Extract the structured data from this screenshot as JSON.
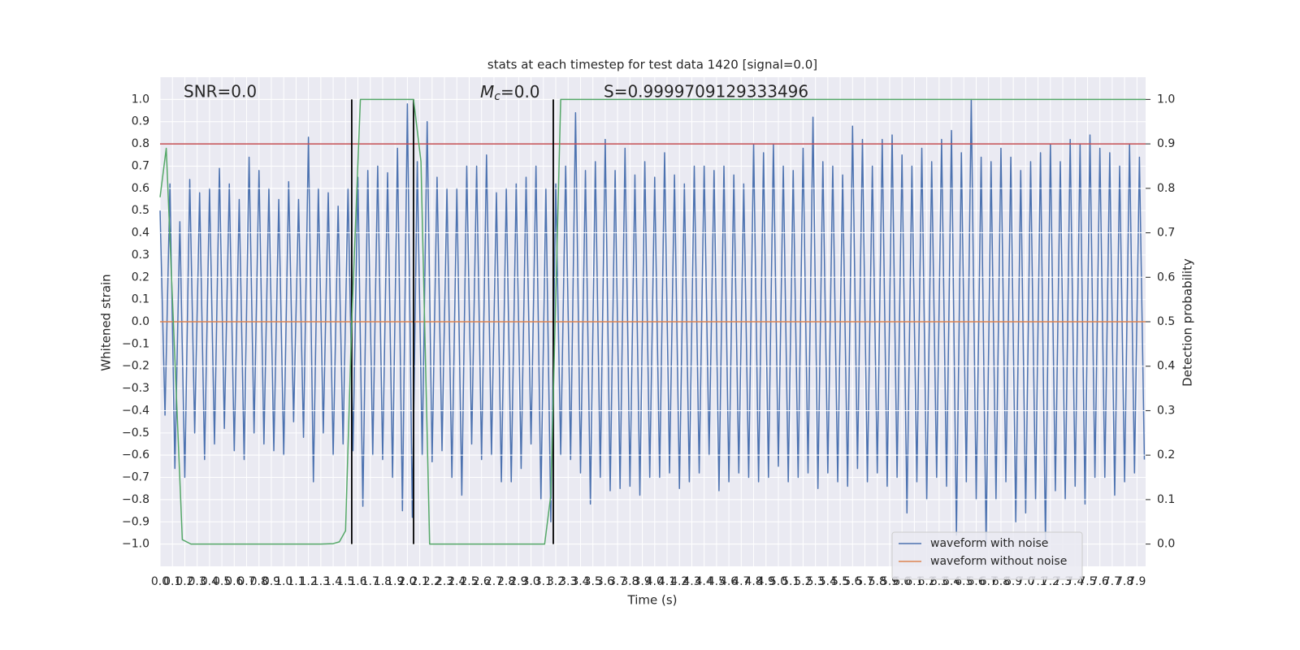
{
  "chart_data": {
    "type": "line",
    "title": "stats at each timestep for test data 1420 [signal=0.0]",
    "xlabel": "Time (s)",
    "ylabel": "Whitened strain",
    "y2label": "Detection probability",
    "grid": true,
    "legend": "lower right",
    "xlim": [
      0,
      7.97
    ],
    "ylim": [
      -1.1,
      1.1
    ],
    "y2lim": [
      -0.05,
      1.05
    ],
    "xticks": [
      {
        "value": 0,
        "label": "0.0"
      },
      0.1,
      0.2,
      0.3,
      0.4,
      0.5,
      0.6,
      0.7,
      0.8,
      0.9,
      {
        "value": 1,
        "label": "1.0"
      },
      1.1,
      1.2,
      1.3,
      1.4,
      1.5,
      1.6,
      1.7,
      1.8,
      1.9,
      {
        "value": 2,
        "label": "2.0"
      },
      2.1,
      2.2,
      2.3,
      2.4,
      2.5,
      2.6,
      2.7,
      2.8,
      2.9,
      {
        "value": 3,
        "label": "3.0"
      },
      3.1,
      3.2,
      3.3,
      3.4,
      3.5,
      3.6,
      3.7,
      3.8,
      3.9,
      {
        "value": 4,
        "label": "4.0"
      },
      4.1,
      4.2,
      4.3,
      4.4,
      4.5,
      4.6,
      4.7,
      4.8,
      4.9,
      {
        "value": 5,
        "label": "5.0"
      },
      5.1,
      5.2,
      5.3,
      5.4,
      5.5,
      5.6,
      5.7,
      5.8,
      5.9,
      {
        "value": 6,
        "label": "6.0"
      },
      6.1,
      6.2,
      6.3,
      6.4,
      6.5,
      6.6,
      6.7,
      6.8,
      6.9,
      {
        "value": 7,
        "label": "7.0"
      },
      7.1,
      7.2,
      7.3,
      7.4,
      7.5,
      7.6,
      7.7,
      7.8,
      7.9
    ],
    "yticks": [
      {
        "value": -1,
        "label": "−1.0"
      },
      {
        "value": -0.9,
        "label": "−0.9"
      },
      {
        "value": -0.8,
        "label": "−0.8"
      },
      {
        "value": -0.7,
        "label": "−0.7"
      },
      {
        "value": -0.6,
        "label": "−0.6"
      },
      {
        "value": -0.5,
        "label": "−0.5"
      },
      {
        "value": -0.4,
        "label": "−0.4"
      },
      {
        "value": -0.3,
        "label": "−0.3"
      },
      {
        "value": -0.2,
        "label": "−0.2"
      },
      {
        "value": -0.1,
        "label": "−0.1"
      },
      {
        "value": 0,
        "label": "0.0"
      },
      0.1,
      0.2,
      0.3,
      0.4,
      0.5,
      0.6,
      0.7,
      0.8,
      0.9,
      {
        "value": 1,
        "label": "1.0"
      }
    ],
    "y2ticks": [
      {
        "value": 0,
        "label": "0.0"
      },
      0.1,
      0.2,
      0.3,
      0.4,
      0.5,
      0.6,
      0.7,
      0.8,
      0.9,
      {
        "value": 1,
        "label": "1.0"
      }
    ],
    "annotations": [
      {
        "text": "SNR=0.0"
      },
      {
        "base": "M",
        "sub": "c",
        "text": "=0.0"
      },
      {
        "text": "S=0.9999709129333496"
      }
    ],
    "series": [
      {
        "name": "waveform with noise",
        "color": "#4c72b0",
        "x": [
          0,
          0.04,
          0.08,
          0.12,
          0.16,
          0.2,
          0.24,
          0.28,
          0.32,
          0.36,
          0.4,
          0.44,
          0.48,
          0.52,
          0.56,
          0.6,
          0.64,
          0.68,
          0.72,
          0.76,
          0.8,
          0.84,
          0.88,
          0.92,
          0.96,
          1,
          1.04,
          1.08,
          1.12,
          1.16,
          1.2,
          1.24,
          1.28,
          1.32,
          1.36,
          1.4,
          1.44,
          1.48,
          1.52,
          1.56,
          1.6,
          1.64,
          1.68,
          1.72,
          1.76,
          1.8,
          1.84,
          1.88,
          1.92,
          1.96,
          2,
          2.04,
          2.08,
          2.12,
          2.16,
          2.2,
          2.24,
          2.28,
          2.32,
          2.36,
          2.4,
          2.44,
          2.48,
          2.52,
          2.56,
          2.6,
          2.64,
          2.68,
          2.72,
          2.76,
          2.8,
          2.84,
          2.88,
          2.92,
          2.96,
          3,
          3.04,
          3.08,
          3.12,
          3.16,
          3.2,
          3.24,
          3.28,
          3.32,
          3.36,
          3.4,
          3.44,
          3.48,
          3.52,
          3.56,
          3.6,
          3.64,
          3.68,
          3.72,
          3.76,
          3.8,
          3.84,
          3.88,
          3.92,
          3.96,
          4,
          4.04,
          4.08,
          4.12,
          4.16,
          4.2,
          4.24,
          4.28,
          4.32,
          4.36,
          4.4,
          4.44,
          4.48,
          4.52,
          4.56,
          4.6,
          4.64,
          4.68,
          4.72,
          4.76,
          4.8,
          4.84,
          4.88,
          4.92,
          4.96,
          5,
          5.04,
          5.08,
          5.12,
          5.16,
          5.2,
          5.24,
          5.28,
          5.32,
          5.36,
          5.4,
          5.44,
          5.48,
          5.52,
          5.56,
          5.6,
          5.64,
          5.68,
          5.72,
          5.76,
          5.8,
          5.84,
          5.88,
          5.92,
          5.96,
          6,
          6.04,
          6.08,
          6.12,
          6.16,
          6.2,
          6.24,
          6.28,
          6.32,
          6.36,
          6.4,
          6.44,
          6.48,
          6.52,
          6.56,
          6.6,
          6.64,
          6.68,
          6.72,
          6.76,
          6.8,
          6.84,
          6.88,
          6.92,
          6.96,
          7,
          7.04,
          7.08,
          7.12,
          7.16,
          7.2,
          7.24,
          7.28,
          7.32,
          7.36,
          7.4,
          7.44,
          7.48,
          7.52,
          7.56,
          7.6,
          7.64,
          7.68,
          7.72,
          7.76,
          7.8,
          7.84,
          7.88,
          7.92,
          7.96
        ],
        "values": [
          0.5,
          -0.42,
          0.62,
          -0.66,
          0.45,
          -0.7,
          0.64,
          -0.5,
          0.58,
          -0.62,
          0.6,
          -0.55,
          0.69,
          -0.48,
          0.62,
          -0.58,
          0.55,
          -0.62,
          0.74,
          -0.5,
          0.68,
          -0.55,
          0.6,
          -0.58,
          0.55,
          -0.6,
          0.63,
          -0.45,
          0.55,
          -0.52,
          0.83,
          -0.72,
          0.6,
          -0.5,
          0.58,
          -0.6,
          0.52,
          -0.55,
          0.6,
          -0.58,
          0.65,
          -0.83,
          0.68,
          -0.6,
          0.7,
          -0.62,
          0.67,
          -0.7,
          0.78,
          -0.85,
          0.98,
          -0.88,
          0.72,
          -0.6,
          0.9,
          -0.63,
          0.65,
          -0.58,
          0.6,
          -0.7,
          0.6,
          -0.78,
          0.7,
          -0.55,
          0.7,
          -0.62,
          0.75,
          -0.6,
          0.58,
          -0.72,
          0.6,
          -0.72,
          0.62,
          -0.66,
          0.65,
          -0.55,
          0.7,
          -0.8,
          0.6,
          -0.9,
          0.62,
          -0.6,
          0.7,
          -0.62,
          0.94,
          -0.68,
          0.68,
          -0.82,
          0.72,
          -0.7,
          0.82,
          -0.76,
          0.68,
          -0.75,
          0.78,
          -0.74,
          0.66,
          -0.78,
          0.72,
          -0.7,
          0.65,
          -0.7,
          0.76,
          -0.68,
          0.66,
          -0.75,
          0.62,
          -0.72,
          0.7,
          -0.68,
          0.7,
          -0.6,
          0.68,
          -0.76,
          0.7,
          -0.72,
          0.66,
          -0.68,
          0.62,
          -0.7,
          0.8,
          -0.72,
          0.76,
          -0.7,
          0.8,
          -0.65,
          0.7,
          -0.72,
          0.68,
          -0.7,
          0.78,
          -0.68,
          0.92,
          -0.75,
          0.72,
          -0.68,
          0.7,
          -0.72,
          0.66,
          -0.74,
          0.88,
          -0.66,
          0.82,
          -0.72,
          0.7,
          -0.68,
          0.82,
          -0.74,
          0.84,
          -0.7,
          0.75,
          -0.86,
          0.7,
          -0.72,
          0.78,
          -0.8,
          0.72,
          -0.7,
          0.82,
          -0.74,
          0.86,
          -0.96,
          0.76,
          -0.72,
          1.0,
          -0.8,
          0.74,
          -1.0,
          0.72,
          -0.8,
          0.78,
          -0.72,
          0.74,
          -0.9,
          0.68,
          -0.86,
          0.72,
          -0.8,
          0.76,
          -0.99,
          0.8,
          -0.76,
          0.72,
          -0.8,
          0.82,
          -0.74,
          0.8,
          -0.82,
          0.84,
          -0.7,
          0.78,
          -0.7,
          0.76,
          -0.78,
          0.7,
          -0.72,
          0.8,
          -0.68,
          0.74,
          -0.62
        ]
      },
      {
        "name": "waveform without noise",
        "color": "#dd8452",
        "x": [
          0,
          7.97
        ],
        "values": [
          0,
          0
        ]
      },
      {
        "color": "#55a868",
        "axis": "y2",
        "x": [
          0,
          0.05,
          0.18,
          0.25,
          1.3,
          1.4,
          1.45,
          1.5,
          1.55,
          1.62,
          2.05,
          2.11,
          2.18,
          3.11,
          3.16,
          3.24,
          7.97
        ],
        "values": [
          0.78,
          0.89,
          0.01,
          0,
          0,
          0.001,
          0.005,
          0.03,
          0.5,
          1,
          1,
          0.86,
          0,
          0,
          0.11,
          1,
          1
        ]
      }
    ],
    "hline": {
      "value": 0.8,
      "color": "#c44e52"
    },
    "vlines": {
      "x": [
        1.55,
        2.05,
        3.18
      ],
      "ymin": -1,
      "ymax": 1,
      "color": "#000000"
    }
  }
}
